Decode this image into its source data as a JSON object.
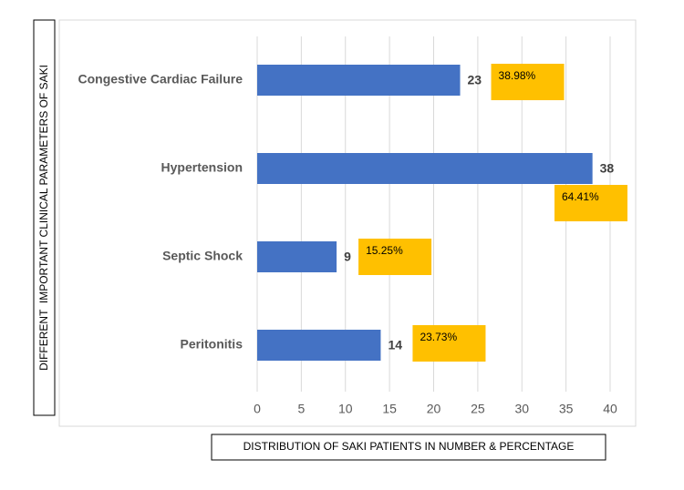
{
  "chart_data": {
    "type": "bar",
    "orientation": "horizontal",
    "x_label": "DISTRIBUTION OF SAKI PATIENTS IN NUMBER & PERCENTAGE",
    "y_label": "DIFFERENT  IMPORTANT CLINICAL PARAMETERS OF SAKI",
    "categories": [
      "Congestive Cardiac Failure",
      "Hypertension",
      "Septic Shock",
      "Peritonitis"
    ],
    "values": [
      23,
      38,
      9,
      14
    ],
    "percent_labels": [
      "38.98%",
      "64.41%",
      "15.25%",
      "23.73%"
    ],
    "color": "#4472c4",
    "percent_color": "#ffc000",
    "xlim": [
      0,
      40
    ],
    "xticks": [
      0,
      5,
      10,
      15,
      20,
      25,
      30,
      35,
      40
    ],
    "grid": true
  }
}
